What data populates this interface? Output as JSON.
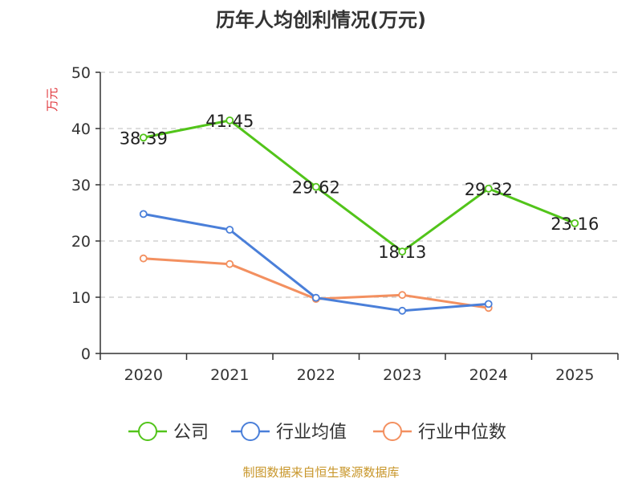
{
  "chart_data": {
    "type": "line",
    "title": "历年人均创利情况(万元)",
    "ylabel": "万元",
    "xlabel": "",
    "categories": [
      "2020",
      "2021",
      "2022",
      "2023",
      "2024",
      "2025"
    ],
    "ylim": [
      0,
      50
    ],
    "yticks": [
      0,
      10,
      20,
      30,
      40,
      50
    ],
    "grid": true,
    "legend_position": "bottom",
    "series": [
      {
        "name": "公司",
        "color": "#52c41a",
        "values": [
          38.39,
          41.45,
          29.62,
          18.13,
          29.32,
          23.16
        ],
        "labels": [
          "38.39",
          "41.45",
          "29.62",
          "18.13",
          "29.32",
          "23.16"
        ]
      },
      {
        "name": "行业均值",
        "color": "#4a7fd9",
        "values": [
          24.8,
          22.0,
          9.9,
          7.6,
          8.8,
          null
        ]
      },
      {
        "name": "行业中位数",
        "color": "#f39060",
        "values": [
          16.9,
          15.9,
          9.7,
          10.4,
          8.1,
          null
        ]
      }
    ]
  },
  "source_text": "制图数据来自恒生聚源数据库",
  "colors": {
    "ylabel": "#e0363b",
    "source": "#c8962a",
    "axis": "#333333",
    "grid": "#bbbbbb"
  }
}
